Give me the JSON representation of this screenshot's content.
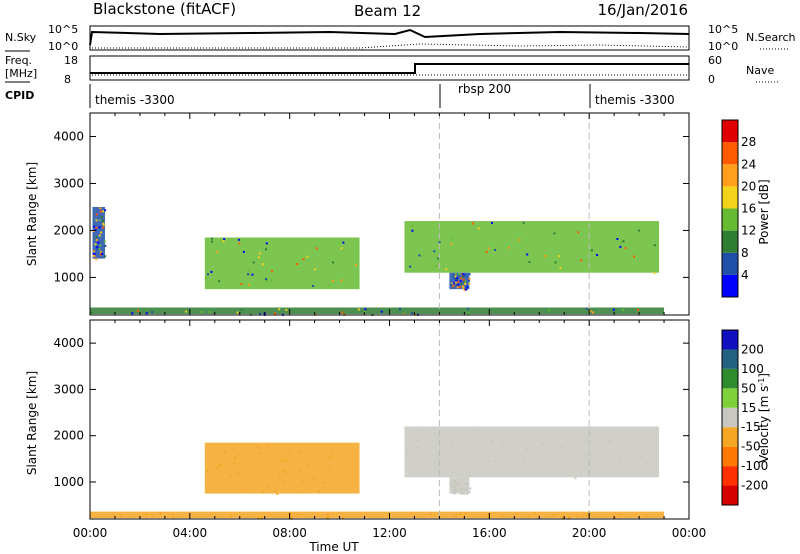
{
  "header": {
    "station": "Blackstone (fitACF)",
    "beam": "Beam 12",
    "date": "16/Jan/2016"
  },
  "strips": {
    "nsky_label": "N.Sky",
    "nsky_ticks": [
      "10^5",
      "10^0"
    ],
    "nsearch_label": "N.Search",
    "freq_label_top": "Freq.",
    "freq_label_unit": "[MHz]",
    "freq_ticks": [
      "18",
      "8"
    ],
    "nave_label": "Nave",
    "nave_ticks": [
      "60",
      "0"
    ],
    "cpid_label": "CPID",
    "cpid_segments": [
      {
        "name": "themis -3300",
        "start_h": 0
      },
      {
        "name": "rbsp 200",
        "start_h": 14
      },
      {
        "name": "themis -3300",
        "start_h": 20
      }
    ]
  },
  "colors": {
    "power": [
      "#0000ff",
      "#1f4fa8",
      "#2e7d32",
      "#66bb33",
      "#f2d21b",
      "#ff9f1a",
      "#ff5a00",
      "#e00000"
    ],
    "velocity": [
      "#1010c0",
      "#246080",
      "#2e8b2e",
      "#7fd13b",
      "#c8c8c0",
      "#f5a623",
      "#ff7a00",
      "#ff3000",
      "#d40000"
    ]
  },
  "chart_data": [
    {
      "type": "heatmap",
      "panel": "power",
      "ylabel": "Slant Range [km]",
      "xlabel": "",
      "xlim": [
        0,
        24
      ],
      "ylim": [
        200,
        4500
      ],
      "yticks": [
        1000,
        2000,
        3000,
        4000
      ],
      "x_tick_labels": [
        "00:00",
        "04:00",
        "08:00",
        "12:00",
        "16:00",
        "20:00",
        "00:00"
      ],
      "colorbar_label": "Power [dB]",
      "colorbar_ticks": [
        "4",
        "8",
        "12",
        "16",
        "20",
        "24",
        "28"
      ],
      "regions": [
        {
          "t0": 4.6,
          "t1": 10.8,
          "r0": 750,
          "r1": 1850,
          "level": 16
        },
        {
          "t0": 12.6,
          "t1": 22.8,
          "r0": 1100,
          "r1": 2200,
          "level": 17
        },
        {
          "t0": 0.0,
          "t1": 23.0,
          "r0": 220,
          "r1": 360,
          "level": 10
        },
        {
          "t0": 14.4,
          "t1": 15.2,
          "r0": 750,
          "r1": 1100,
          "level": 8
        },
        {
          "t0": 0.1,
          "t1": 0.6,
          "r0": 1400,
          "r1": 2500,
          "level": 6
        }
      ]
    },
    {
      "type": "heatmap",
      "panel": "velocity",
      "ylabel": "Slant Range [km]",
      "xlabel": "Time UT",
      "xlim": [
        0,
        24
      ],
      "ylim": [
        200,
        4500
      ],
      "yticks": [
        1000,
        2000,
        3000,
        4000
      ],
      "x_tick_labels": [
        "00:00",
        "04:00",
        "08:00",
        "12:00",
        "16:00",
        "20:00",
        "00:00"
      ],
      "colorbar_label": "Velocity [m s^-1]",
      "colorbar_ticks": [
        "200",
        "100",
        "50",
        "15",
        "-15",
        "-50",
        "-100",
        "-200"
      ],
      "regions": [
        {
          "t0": 4.6,
          "t1": 10.8,
          "r0": 750,
          "r1": 1850,
          "v": -40
        },
        {
          "t0": 12.6,
          "t1": 22.8,
          "r0": 1100,
          "r1": 2200,
          "v": 0
        },
        {
          "t0": 0.0,
          "t1": 23.0,
          "r0": 220,
          "r1": 360,
          "v": -40
        },
        {
          "t0": 14.4,
          "t1": 15.2,
          "r0": 750,
          "r1": 1100,
          "v": 0
        }
      ]
    }
  ]
}
